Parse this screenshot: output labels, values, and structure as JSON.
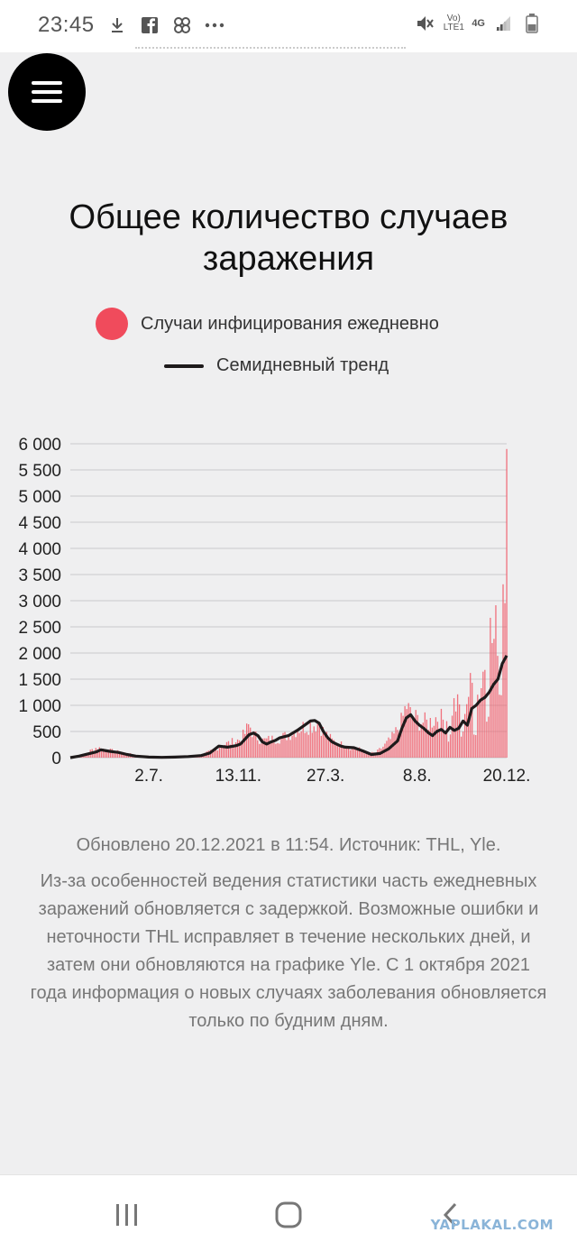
{
  "status_bar": {
    "time": "23:45",
    "icons_left": [
      "download-icon",
      "facebook-icon",
      "pinwheel-icon",
      "more-icon"
    ],
    "icons_right": [
      "mute-icon",
      "volte-icon",
      "4g-icon",
      "signal-icon",
      "battery-icon"
    ],
    "volte_label": "Vo) LTE1",
    "network_label": "4G"
  },
  "menu": {
    "icon": "hamburger-icon"
  },
  "chart_data": {
    "type": "bar",
    "title": "Общее количество случаев заражения",
    "legend": [
      {
        "name": "Случаи инфицирования ежедневно",
        "color": "#f04b5c",
        "kind": "bar"
      },
      {
        "name": "Семидневный тренд",
        "color": "#1e1a1b",
        "kind": "line"
      }
    ],
    "legend_placement": "top-center",
    "grid": true,
    "ylim": [
      0,
      6000
    ],
    "y_ticks": [
      "6 000",
      "5 500",
      "5 000",
      "4 500",
      "4 000",
      "3 500",
      "3 000",
      "2 500",
      "2 000",
      "1 500",
      "1 000",
      "500",
      "0"
    ],
    "x_ticks": [
      "2.7.",
      "13.11.",
      "27.3.",
      "8.8.",
      "20.12."
    ],
    "x_tick_positions": [
      0.18,
      0.385,
      0.585,
      0.795,
      1.0
    ],
    "series": [
      {
        "name": "Семидневный тренд",
        "type": "line",
        "x": [
          0,
          0.02,
          0.04,
          0.06,
          0.07,
          0.09,
          0.11,
          0.13,
          0.15,
          0.18,
          0.21,
          0.24,
          0.27,
          0.3,
          0.32,
          0.34,
          0.36,
          0.38,
          0.39,
          0.41,
          0.42,
          0.43,
          0.44,
          0.45,
          0.46,
          0.47,
          0.48,
          0.5,
          0.52,
          0.54,
          0.55,
          0.56,
          0.57,
          0.58,
          0.59,
          0.6,
          0.61,
          0.62,
          0.63,
          0.65,
          0.67,
          0.69,
          0.71,
          0.73,
          0.75,
          0.76,
          0.77,
          0.78,
          0.79,
          0.8,
          0.81,
          0.82,
          0.83,
          0.84,
          0.85,
          0.86,
          0.87,
          0.88,
          0.89,
          0.9,
          0.91,
          0.92,
          0.93,
          0.94,
          0.95,
          0.96,
          0.97,
          0.98,
          0.99,
          1.0
        ],
        "values": [
          0,
          30,
          70,
          110,
          150,
          120,
          100,
          60,
          30,
          10,
          5,
          10,
          20,
          40,
          90,
          220,
          200,
          230,
          260,
          440,
          470,
          420,
          300,
          260,
          300,
          330,
          380,
          420,
          520,
          640,
          700,
          710,
          660,
          500,
          380,
          300,
          260,
          220,
          200,
          190,
          130,
          60,
          80,
          170,
          320,
          560,
          760,
          820,
          700,
          620,
          560,
          480,
          420,
          500,
          540,
          470,
          580,
          520,
          560,
          700,
          620,
          940,
          1000,
          1100,
          1150,
          1250,
          1400,
          1500,
          1800,
          1950
        ]
      }
    ],
    "daily_envelope": {
      "x": [
        0,
        0.03,
        0.06,
        0.09,
        0.12,
        0.15,
        0.18,
        0.22,
        0.26,
        0.3,
        0.33,
        0.35,
        0.37,
        0.39,
        0.4,
        0.41,
        0.42,
        0.44,
        0.46,
        0.48,
        0.5,
        0.52,
        0.54,
        0.56,
        0.57,
        0.58,
        0.6,
        0.62,
        0.64,
        0.66,
        0.68,
        0.7,
        0.72,
        0.74,
        0.76,
        0.77,
        0.78,
        0.8,
        0.82,
        0.84,
        0.86,
        0.87,
        0.88,
        0.9,
        0.92,
        0.93,
        0.94,
        0.95,
        0.96,
        0.97,
        0.98,
        0.99,
        1.0
      ],
      "values": [
        0,
        80,
        250,
        180,
        120,
        60,
        20,
        10,
        15,
        60,
        200,
        320,
        380,
        450,
        600,
        820,
        560,
        420,
        450,
        480,
        560,
        700,
        780,
        820,
        860,
        640,
        420,
        330,
        260,
        220,
        100,
        120,
        300,
        520,
        900,
        1300,
        1050,
        900,
        850,
        1000,
        900,
        1150,
        1300,
        1200,
        1800,
        1500,
        1700,
        2400,
        3100,
        2800,
        3300,
        4300,
        5900
      ]
    }
  },
  "source_line": "Обновлено 20.12.2021 в 11:54. Источник: THL, Yle.",
  "note": "Из-за особенностей ведения статистики часть ежедневных заражений обновляется с задержкой. Возможные ошибки и неточности THL исправляет в течение нескольких дней, и затем они обновляются на графике Yle. С 1 октября 2021 года информация о новых случаях заболевания обновляется только по будним дням.",
  "nav_bar": {
    "buttons": [
      "recents-icon",
      "home-icon",
      "back-icon"
    ],
    "watermark": "YAPLAKAL.COM"
  }
}
